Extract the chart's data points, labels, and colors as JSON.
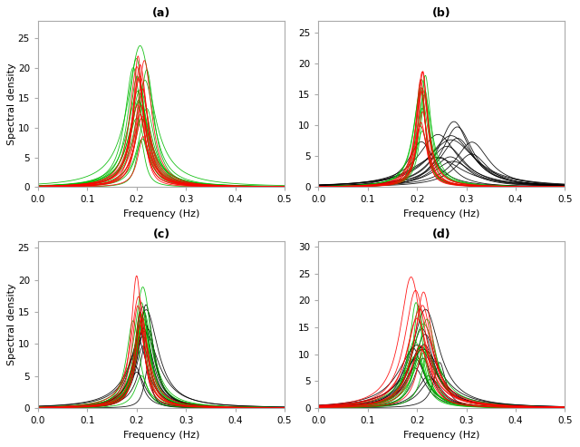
{
  "title_a": "(a)",
  "title_b": "(b)",
  "title_c": "(c)",
  "title_d": "(d)",
  "xlabel": "Frequency (Hz)",
  "ylabel": "Spectral density",
  "xlim": [
    0.0,
    0.5
  ],
  "ylim_a": [
    0,
    28
  ],
  "ylim_b": [
    0,
    27
  ],
  "ylim_c": [
    0,
    26
  ],
  "ylim_d": [
    0,
    31
  ],
  "yticks_a": [
    0,
    5,
    10,
    15,
    20,
    25
  ],
  "yticks_b": [
    0,
    5,
    10,
    15,
    20,
    25
  ],
  "yticks_c": [
    0,
    5,
    10,
    15,
    20,
    25
  ],
  "yticks_d": [
    0,
    5,
    10,
    15,
    20,
    25,
    30
  ],
  "xticks": [
    0.0,
    0.1,
    0.2,
    0.3,
    0.4,
    0.5
  ],
  "background": "#ffffff",
  "color_green": "#00bb00",
  "color_red": "#ff0000",
  "color_black": "#000000",
  "spine_color": "#aaaaaa",
  "lw": 0.6
}
